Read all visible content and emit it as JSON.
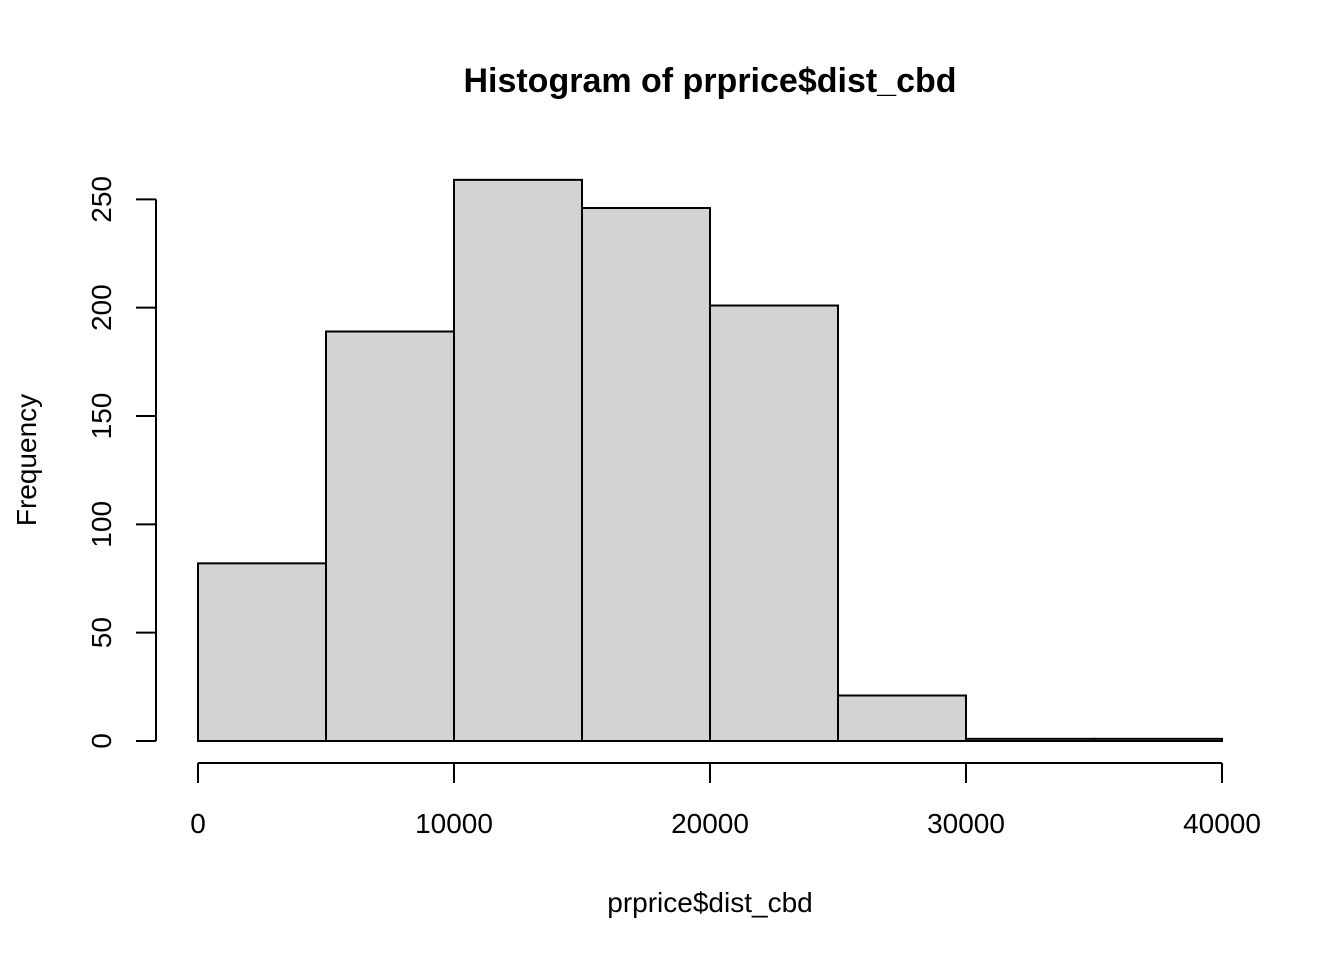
{
  "chart_data": {
    "type": "bar",
    "subtype": "histogram",
    "title": "Histogram of prprice$dist_cbd",
    "xlabel": "prprice$dist_cbd",
    "ylabel": "Frequency",
    "bins": [
      {
        "start": 0,
        "end": 5000,
        "count": 82
      },
      {
        "start": 5000,
        "end": 10000,
        "count": 189
      },
      {
        "start": 10000,
        "end": 15000,
        "count": 259
      },
      {
        "start": 15000,
        "end": 20000,
        "count": 246
      },
      {
        "start": 20000,
        "end": 25000,
        "count": 201
      },
      {
        "start": 25000,
        "end": 30000,
        "count": 21
      },
      {
        "start": 30000,
        "end": 35000,
        "count": 1
      },
      {
        "start": 35000,
        "end": 40000,
        "count": 1
      }
    ],
    "xlim": [
      0,
      40000
    ],
    "ylim": [
      0,
      259
    ],
    "x_ticks": [
      "0",
      "10000",
      "20000",
      "30000",
      "40000"
    ],
    "y_ticks": [
      "0",
      "50",
      "100",
      "150",
      "200",
      "250"
    ],
    "bar_color": "#d3d3d3",
    "bar_border_color": "#000000",
    "grid": false,
    "legend": "none"
  }
}
